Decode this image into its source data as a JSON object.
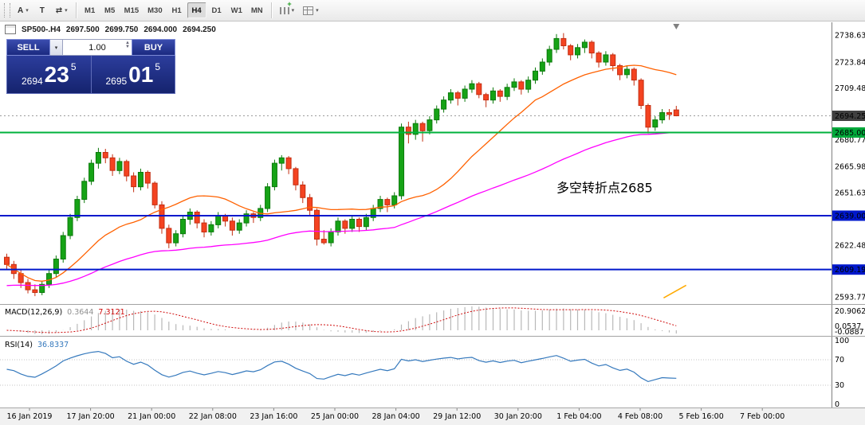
{
  "toolbar": {
    "tools": [
      {
        "label": "A",
        "dropdown": true
      },
      {
        "label": "T",
        "dropdown": false
      },
      {
        "label": "⇄",
        "dropdown": true
      }
    ],
    "timeframes": [
      "M1",
      "M5",
      "M15",
      "M30",
      "H1",
      "H4",
      "D1",
      "W1",
      "MN"
    ],
    "active_timeframe": "H4"
  },
  "header": {
    "symbol_period": "SP500-.H4",
    "open": "2697.500",
    "high": "2699.750",
    "low": "2694.000",
    "close": "2694.250"
  },
  "one_click": {
    "sell_label": "SELL",
    "buy_label": "BUY",
    "volume": "1.00",
    "bid": {
      "prefix": "2694",
      "big": "23",
      "sup": "5"
    },
    "ask": {
      "prefix": "2695",
      "big": "01",
      "sup": "5"
    }
  },
  "price_axis": {
    "labels": [
      {
        "price": 2738.63,
        "text": "2738.630"
      },
      {
        "price": 2723.84,
        "text": "2723.840"
      },
      {
        "price": 2709.485,
        "text": "2709.485"
      },
      {
        "price": 2680.775,
        "text": "2680.775"
      },
      {
        "price": 2665.985,
        "text": "2665.985"
      },
      {
        "price": 2651.63,
        "text": "2651.630"
      },
      {
        "price": 2622.485,
        "text": "2622.485"
      },
      {
        "price": 2593.775,
        "text": "2593.775"
      }
    ],
    "tags": [
      {
        "price": 2694.25,
        "text": "2694.250",
        "bg": "#404040"
      },
      {
        "price": 2685.0,
        "text": "2685.000",
        "bg": "#00a83a"
      },
      {
        "price": 2639.0,
        "text": "2639.000",
        "bg": "#0018cc"
      },
      {
        "price": 2609.193,
        "text": "2609.193",
        "bg": "#0018cc"
      }
    ]
  },
  "macd": {
    "label": "MACD(12,26,9)",
    "main_value": "0.3644",
    "signal_value": "7.3121",
    "axis_labels": [
      "20.9062",
      "0.0537",
      "-0.0887"
    ],
    "params": {
      "fast": 12,
      "slow": 26,
      "signal": 9
    },
    "colors": {
      "histogram": "#b8b8b8",
      "signal": "#cf0a0a"
    }
  },
  "rsi": {
    "label": "RSI(14)",
    "value": "36.8337",
    "period": 14,
    "levels": [
      100,
      70,
      30,
      0
    ],
    "axis_labels": [
      "100",
      "70",
      "30",
      "0"
    ],
    "color": "#3579bd"
  },
  "time_axis": {
    "labels": [
      "16 Jan 2019",
      "17 Jan 20:00",
      "21 Jan 00:00",
      "22 Jan 08:00",
      "23 Jan 16:00",
      "25 Jan 00:00",
      "28 Jan 04:00",
      "29 Jan 12:00",
      "30 Jan 20:00",
      "1 Feb 04:00",
      "4 Feb 08:00",
      "5 Feb 16:00",
      "7 Feb 00:00"
    ]
  },
  "chart_data": {
    "type": "candlestick",
    "symbol": "SP500-",
    "timeframe": "H4",
    "title": "SP500-.H4",
    "ylim": [
      2591,
      2746
    ],
    "current_price": 2694.25,
    "colors": {
      "bull": "#16a316",
      "bull_border": "#0c7a0c",
      "bear": "#f44321",
      "bear_border": "#c32f12"
    },
    "candles": [
      [
        2616,
        2618,
        2609,
        2612
      ],
      [
        2612,
        2614,
        2604,
        2607
      ],
      [
        2607,
        2609,
        2599,
        2602
      ],
      [
        2602,
        2604,
        2596,
        2598
      ],
      [
        2598,
        2601,
        2594.5,
        2596.5
      ],
      [
        2596.5,
        2603,
        2595,
        2601
      ],
      [
        2601,
        2609,
        2599,
        2607
      ],
      [
        2607,
        2617,
        2605,
        2615
      ],
      [
        2615,
        2630,
        2613,
        2628
      ],
      [
        2628,
        2640,
        2626,
        2638
      ],
      [
        2638,
        2650,
        2636,
        2648
      ],
      [
        2648,
        2660,
        2646,
        2658
      ],
      [
        2658,
        2670,
        2656,
        2668
      ],
      [
        2668,
        2676.5,
        2665,
        2674
      ],
      [
        2674,
        2676,
        2668,
        2671
      ],
      [
        2671,
        2673,
        2661,
        2664
      ],
      [
        2664,
        2671,
        2662,
        2669
      ],
      [
        2669,
        2670,
        2658,
        2661
      ],
      [
        2661,
        2663,
        2652,
        2655
      ],
      [
        2655,
        2665,
        2653,
        2663
      ],
      [
        2663,
        2664,
        2654,
        2657
      ],
      [
        2657,
        2658,
        2643,
        2645
      ],
      [
        2645,
        2647,
        2629,
        2632
      ],
      [
        2632,
        2634,
        2621,
        2624
      ],
      [
        2624,
        2631,
        2622,
        2629
      ],
      [
        2629,
        2639,
        2627,
        2637
      ],
      [
        2637,
        2643,
        2634,
        2641
      ],
      [
        2641,
        2642,
        2632,
        2635
      ],
      [
        2635,
        2637,
        2627,
        2630
      ],
      [
        2630,
        2636,
        2628,
        2634
      ],
      [
        2634,
        2641,
        2632,
        2639
      ],
      [
        2639,
        2640,
        2633,
        2636
      ],
      [
        2636,
        2638,
        2628,
        2631
      ],
      [
        2631,
        2637,
        2629,
        2635
      ],
      [
        2635,
        2642,
        2633,
        2640
      ],
      [
        2640,
        2641,
        2635,
        2638
      ],
      [
        2638,
        2645,
        2636,
        2643
      ],
      [
        2643,
        2657,
        2641,
        2655
      ],
      [
        2655,
        2670,
        2653,
        2668
      ],
      [
        2668,
        2672.5,
        2664,
        2671
      ],
      [
        2671,
        2672,
        2662,
        2665
      ],
      [
        2665,
        2666,
        2653,
        2656
      ],
      [
        2656,
        2658,
        2646,
        2649
      ],
      [
        2649,
        2651,
        2639,
        2642
      ],
      [
        2642,
        2643,
        2622.5,
        2626
      ],
      [
        2626,
        2631,
        2623,
        2624
      ],
      [
        2624,
        2632,
        2622,
        2630
      ],
      [
        2630,
        2638,
        2628,
        2636
      ],
      [
        2636,
        2637,
        2629,
        2632
      ],
      [
        2632,
        2639,
        2630,
        2637
      ],
      [
        2637,
        2638,
        2630,
        2633
      ],
      [
        2633,
        2640,
        2631,
        2638
      ],
      [
        2638,
        2645,
        2636,
        2643
      ],
      [
        2643,
        2650,
        2641,
        2648
      ],
      [
        2648,
        2649,
        2641,
        2645
      ],
      [
        2645,
        2652,
        2643,
        2650
      ],
      [
        2650,
        2690,
        2648,
        2688
      ],
      [
        2688,
        2691,
        2679,
        2684
      ],
      [
        2684,
        2692,
        2681,
        2690
      ],
      [
        2690,
        2691,
        2680,
        2686
      ],
      [
        2686,
        2694,
        2684,
        2692
      ],
      [
        2692,
        2700,
        2690,
        2698
      ],
      [
        2698,
        2705,
        2696,
        2703
      ],
      [
        2703,
        2709,
        2701,
        2707
      ],
      [
        2707,
        2708,
        2700,
        2704
      ],
      [
        2704,
        2711,
        2702,
        2709
      ],
      [
        2709,
        2714,
        2707,
        2712
      ],
      [
        2712,
        2713,
        2704,
        2706
      ],
      [
        2706,
        2707,
        2699,
        2703
      ],
      [
        2703,
        2710,
        2701,
        2708
      ],
      [
        2708,
        2709,
        2702,
        2705
      ],
      [
        2705,
        2712,
        2703,
        2710
      ],
      [
        2710,
        2715,
        2708,
        2713
      ],
      [
        2713,
        2714,
        2706,
        2709
      ],
      [
        2709,
        2716,
        2707,
        2714
      ],
      [
        2714,
        2721,
        2712,
        2719
      ],
      [
        2719,
        2726,
        2717,
        2724
      ],
      [
        2724,
        2733,
        2722,
        2731
      ],
      [
        2731,
        2739.5,
        2729,
        2737
      ],
      [
        2737,
        2740,
        2731,
        2733
      ],
      [
        2733,
        2734,
        2725,
        2728
      ],
      [
        2728,
        2734,
        2726,
        2732
      ],
      [
        2732,
        2736.5,
        2729,
        2735
      ],
      [
        2735,
        2736,
        2726,
        2729
      ],
      [
        2729,
        2730,
        2721,
        2724
      ],
      [
        2724,
        2730,
        2722,
        2728
      ],
      [
        2728,
        2729,
        2719,
        2722
      ],
      [
        2722,
        2723,
        2714,
        2717
      ],
      [
        2717,
        2722,
        2715,
        2720
      ],
      [
        2720,
        2721,
        2711,
        2714
      ],
      [
        2714,
        2715,
        2698,
        2700
      ],
      [
        2700,
        2701,
        2684.5,
        2688
      ],
      [
        2688,
        2694,
        2686,
        2692
      ],
      [
        2692,
        2698,
        2690,
        2696
      ],
      [
        2696,
        2698,
        2692,
        2695
      ],
      [
        2697.5,
        2699.75,
        2694,
        2694.25
      ]
    ],
    "moving_averages": [
      {
        "name": "fast-ma",
        "method": "sma",
        "period": 20,
        "color": "#ff6100"
      },
      {
        "name": "slow-ma",
        "method": "ema",
        "period": 72,
        "seed": 2600,
        "color": "#ff00ff"
      }
    ],
    "hlines": [
      {
        "price": 2685.0,
        "color": "#00b23b",
        "width": 2
      },
      {
        "price": 2639.0,
        "color": "#0018cc",
        "width": 2
      },
      {
        "price": 2609.193,
        "color": "#0018cc",
        "width": 2
      }
    ],
    "annotations": [
      {
        "type": "text",
        "text": "多空转折点2685",
        "color": "#e10000",
        "index": 78,
        "price": 2652,
        "font_size": 16
      },
      {
        "type": "segment",
        "color": "#ffaa00",
        "from": {
          "index": 93.2,
          "price": 2593.5
        },
        "to": {
          "index": 96.4,
          "price": 2600.5
        }
      }
    ]
  }
}
